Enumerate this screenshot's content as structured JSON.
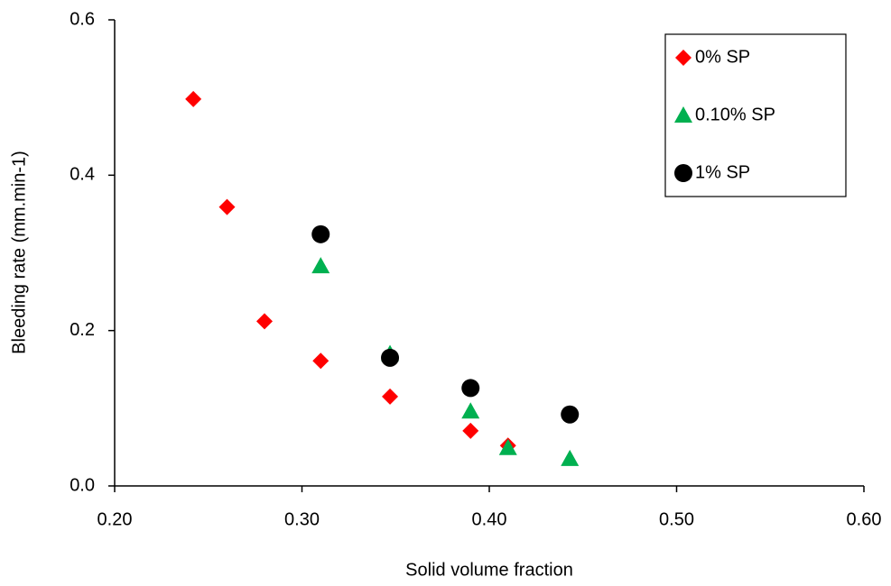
{
  "chart_data": {
    "type": "scatter",
    "x_label": "Solid volume fraction",
    "y_label": "Bleeding rate (mm.min-1)",
    "xlim": [
      0.2,
      0.6
    ],
    "xticks": [
      {
        "value": 0.2,
        "label": "0.20"
      },
      {
        "value": 0.3,
        "label": "0.30"
      },
      {
        "value": 0.4,
        "label": "0.40"
      },
      {
        "value": 0.5,
        "label": "0.50"
      },
      {
        "value": 0.6,
        "label": "0.60"
      }
    ],
    "ylim": [
      0,
      0.6
    ],
    "yticks": [
      {
        "value": 0,
        "label": "0.0"
      },
      0.2,
      0.4,
      0.6
    ],
    "grid": false,
    "legend": "top-right",
    "series": [
      {
        "name": "0% SP",
        "color": "#ff0000",
        "marker": "diamond",
        "x": [
          0.242,
          0.26,
          0.28,
          0.31,
          0.347,
          0.39,
          0.41
        ],
        "values": [
          0.498,
          0.359,
          0.212,
          0.161,
          0.115,
          0.071,
          0.052
        ]
      },
      {
        "name": "0.10% SP",
        "color": "#00b050",
        "marker": "triangle",
        "x": [
          0.31,
          0.347,
          0.39,
          0.41,
          0.443
        ],
        "values": [
          0.283,
          0.17,
          0.096,
          0.049,
          0.035
        ]
      },
      {
        "name": "1% SP",
        "color": "#000000",
        "marker": "circle",
        "x": [
          0.31,
          0.347,
          0.39,
          0.443
        ],
        "values": [
          0.324,
          0.165,
          0.126,
          0.092
        ]
      }
    ]
  }
}
